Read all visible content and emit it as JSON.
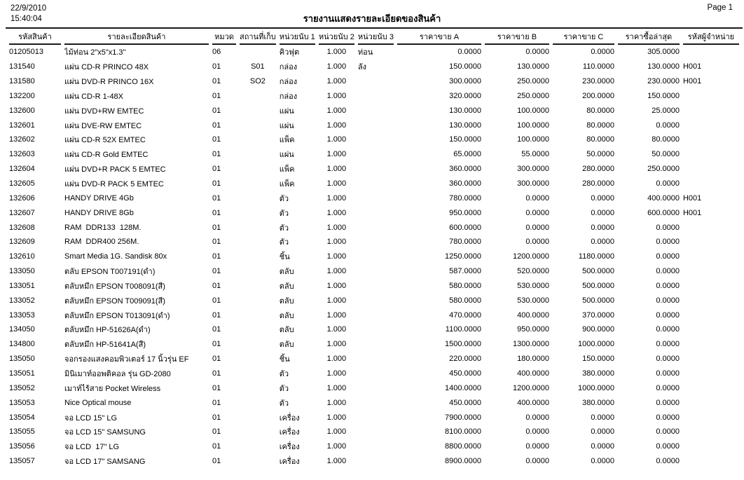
{
  "report": {
    "date": "22/9/2010",
    "time": "15:40:04",
    "title": "รายงานแสดงรายละเอียดของสินค้า",
    "page_label": "Page 1"
  },
  "table": {
    "columns": [
      {
        "key": "code",
        "label": "รหัสสินค้า"
      },
      {
        "key": "description",
        "label": "รายละเอียดสินค้า"
      },
      {
        "key": "category",
        "label": "หมวด"
      },
      {
        "key": "location",
        "label": "สถานที่เก็บ"
      },
      {
        "key": "unit1",
        "label": "หน่วยนับ 1"
      },
      {
        "key": "unit2",
        "label": "หน่วยนับ 2"
      },
      {
        "key": "unit3",
        "label": "หน่วยนับ 3"
      },
      {
        "key": "price_a",
        "label": "ราคาขาย A"
      },
      {
        "key": "price_b",
        "label": "ราคาขาย B"
      },
      {
        "key": "price_c",
        "label": "ราคาขาย C"
      },
      {
        "key": "last_purchase_price",
        "label": "ราคาซื้อล่าสุด"
      },
      {
        "key": "vendor_code",
        "label": "รหัสผู้จำหน่าย"
      }
    ],
    "rows": [
      [
        "01205013",
        "ไม้ท่อน 2\"x5\"x1.3\"",
        "06",
        "",
        "คิวฟุต",
        "1.000",
        "ท่อน",
        "0.0000",
        "0.0000",
        "0.0000",
        "305.0000",
        ""
      ],
      [
        "131540",
        "แผ่น CD-R PRINCO 48X",
        "01",
        "S01",
        "กล่อง",
        "1.000",
        "ลัง",
        "150.0000",
        "130.0000",
        "110.0000",
        "130.0000",
        "H001"
      ],
      [
        "131580",
        "แผ่น DVD-R PRINCO 16X",
        "01",
        "SO2",
        "กล่อง",
        "1.000",
        "",
        "300.0000",
        "250.0000",
        "230.0000",
        "230.0000",
        "H001"
      ],
      [
        "132200",
        "แผ่น CD-R 1-48X",
        "01",
        "",
        "กล่อง",
        "1.000",
        "",
        "320.0000",
        "250.0000",
        "200.0000",
        "150.0000",
        ""
      ],
      [
        "132600",
        "แผ่น DVD+RW EMTEC",
        "01",
        "",
        "แผ่น",
        "1.000",
        "",
        "130.0000",
        "100.0000",
        "80.0000",
        "25.0000",
        ""
      ],
      [
        "132601",
        "แผ่น DVE-RW EMTEC",
        "01",
        "",
        "แผ่น",
        "1.000",
        "",
        "130.0000",
        "100.0000",
        "80.0000",
        "0.0000",
        ""
      ],
      [
        "132602",
        "แผ่น CD-R 52X EMTEC",
        "01",
        "",
        "แพ็ค",
        "1.000",
        "",
        "150.0000",
        "100.0000",
        "80.0000",
        "80.0000",
        ""
      ],
      [
        "132603",
        "แผ่น CD-R Gold EMTEC",
        "01",
        "",
        "แผ่น",
        "1.000",
        "",
        "65.0000",
        "55.0000",
        "50.0000",
        "50.0000",
        ""
      ],
      [
        "132604",
        "แผ่น DVD+R PACK 5 EMTEC",
        "01",
        "",
        "แพ็ค",
        "1.000",
        "",
        "360.0000",
        "300.0000",
        "280.0000",
        "250.0000",
        ""
      ],
      [
        "132605",
        "แผ่น DVD-R PACK 5 EMTEC",
        "01",
        "",
        "แพ็ค",
        "1.000",
        "",
        "360.0000",
        "300.0000",
        "280.0000",
        "0.0000",
        ""
      ],
      [
        "132606",
        "HANDY DRIVE 4Gb",
        "01",
        "",
        "ตัว",
        "1.000",
        "",
        "780.0000",
        "0.0000",
        "0.0000",
        "400.0000",
        "H001"
      ],
      [
        "132607",
        "HANDY DRIVE 8Gb",
        "01",
        "",
        "ตัว",
        "1.000",
        "",
        "950.0000",
        "0.0000",
        "0.0000",
        "600.0000",
        "H001"
      ],
      [
        "132608",
        "RAM  DDR133  128M.",
        "01",
        "",
        "ตัว",
        "1.000",
        "",
        "600.0000",
        "0.0000",
        "0.0000",
        "0.0000",
        ""
      ],
      [
        "132609",
        "RAM  DDR400 256M.",
        "01",
        "",
        "ตัว",
        "1.000",
        "",
        "780.0000",
        "0.0000",
        "0.0000",
        "0.0000",
        ""
      ],
      [
        "132610",
        "Smart Media 1G. Sandisk 80x",
        "01",
        "",
        "ชิ้น",
        "1.000",
        "",
        "1250.0000",
        "1200.0000",
        "1180.0000",
        "0.0000",
        ""
      ],
      [
        "133050",
        "ตลับ EPSON T007191(ดำ)",
        "01",
        "",
        "ตลับ",
        "1.000",
        "",
        "587.0000",
        "520.0000",
        "500.0000",
        "0.0000",
        ""
      ],
      [
        "133051",
        "ตลับหมึก EPSON T008091(สี)",
        "01",
        "",
        "ตลับ",
        "1.000",
        "",
        "580.0000",
        "530.0000",
        "500.0000",
        "0.0000",
        ""
      ],
      [
        "133052",
        "ตลับหมึก EPSON T009091(สี)",
        "01",
        "",
        "ตลับ",
        "1.000",
        "",
        "580.0000",
        "530.0000",
        "500.0000",
        "0.0000",
        ""
      ],
      [
        "133053",
        "ตลับหมึก EPSON T013091(ดำ)",
        "01",
        "",
        "ตลับ",
        "1.000",
        "",
        "470.0000",
        "400.0000",
        "370.0000",
        "0.0000",
        ""
      ],
      [
        "134050",
        "ตลับหมึก HP-51626A(ดำ)",
        "01",
        "",
        "ตลับ",
        "1.000",
        "",
        "1100.0000",
        "950.0000",
        "900.0000",
        "0.0000",
        ""
      ],
      [
        "134800",
        "ตลับหมึก HP-51641A(สี)",
        "01",
        "",
        "ตลับ",
        "1.000",
        "",
        "1500.0000",
        "1300.0000",
        "1000.0000",
        "0.0000",
        ""
      ],
      [
        "135050",
        "จอกรองแสงคอมพิวเตอร์ 17 นิ้วรุ่น EF",
        "01",
        "",
        "ชิ้น",
        "1.000",
        "",
        "220.0000",
        "180.0000",
        "150.0000",
        "0.0000",
        ""
      ],
      [
        "135051",
        "มินิเมาท์ออพติคอล รุ่น GD-2080",
        "01",
        "",
        "ตัว",
        "1.000",
        "",
        "450.0000",
        "400.0000",
        "380.0000",
        "0.0000",
        ""
      ],
      [
        "135052",
        "เมาท์ไร้สาย Pocket Wireless",
        "01",
        "",
        "ตัว",
        "1.000",
        "",
        "1400.0000",
        "1200.0000",
        "1000.0000",
        "0.0000",
        ""
      ],
      [
        "135053",
        "Nice Optical mouse",
        "01",
        "",
        "ตัว",
        "1.000",
        "",
        "450.0000",
        "400.0000",
        "380.0000",
        "0.0000",
        ""
      ],
      [
        "135054",
        "จอ LCD 15\" LG",
        "01",
        "",
        "เครื่อง",
        "1.000",
        "",
        "7900.0000",
        "0.0000",
        "0.0000",
        "0.0000",
        ""
      ],
      [
        "135055",
        "จอ LCD 15\" SAMSUNG",
        "01",
        "",
        "เครื่อง",
        "1.000",
        "",
        "8100.0000",
        "0.0000",
        "0.0000",
        "0.0000",
        ""
      ],
      [
        "135056",
        "จอ LCD  17\" LG",
        "01",
        "",
        "เครื่อง",
        "1.000",
        "",
        "8800.0000",
        "0.0000",
        "0.0000",
        "0.0000",
        ""
      ],
      [
        "135057",
        "จอ LCD 17\" SAMSANG",
        "01",
        "",
        "เครื่อง",
        "1.000",
        "",
        "8900.0000",
        "0.0000",
        "0.0000",
        "0.0000",
        ""
      ]
    ]
  }
}
